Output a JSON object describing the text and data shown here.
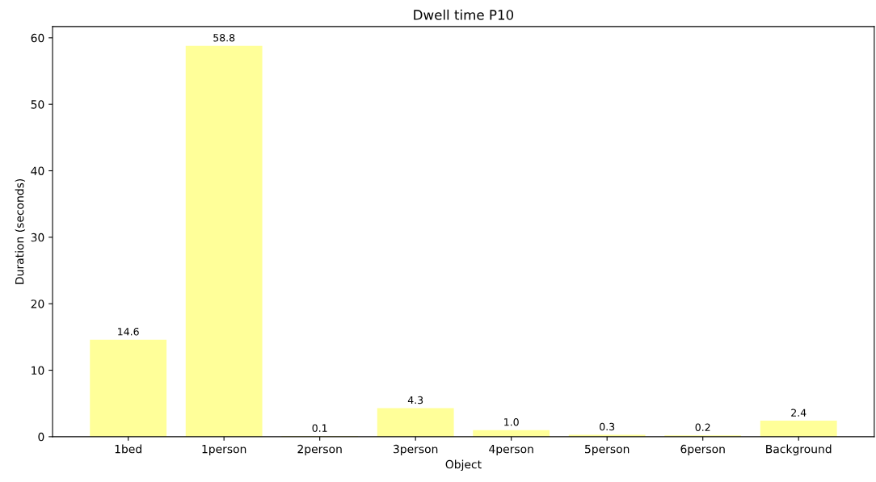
{
  "chart_data": {
    "type": "bar",
    "title": "Dwell time P10",
    "xlabel": "Object",
    "ylabel": "Duration (seconds)",
    "categories": [
      "1bed",
      "1person",
      "2person",
      "3person",
      "4person",
      "5person",
      "6person",
      "Background"
    ],
    "values": [
      14.6,
      58.8,
      0.1,
      4.3,
      1.0,
      0.3,
      0.2,
      2.4
    ],
    "color": "#ffff99",
    "value_labels": [
      "14.6",
      "58.8",
      "0.1",
      "4.3",
      "1.0",
      "0.3",
      "0.2",
      "2.4"
    ],
    "ylim": [
      0,
      61.7
    ],
    "yticks": [
      0,
      10,
      20,
      30,
      40,
      50,
      60
    ],
    "grid": false,
    "legend": false
  }
}
